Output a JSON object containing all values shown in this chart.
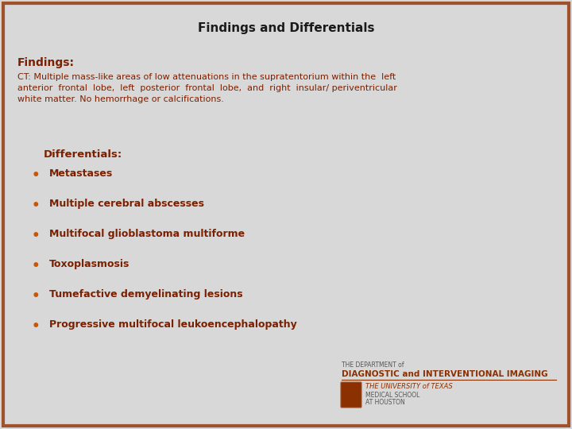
{
  "title": "Findings and Differentials",
  "title_fontsize": 11,
  "title_color": "#1a1a1a",
  "title_fontweight": "bold",
  "background_color": "#d8d8d8",
  "border_color": "#a0522d",
  "border_linewidth": 3,
  "findings_label": "Findings:",
  "findings_label_color": "#7B2000",
  "findings_label_fontsize": 10,
  "findings_text_line1": "CT: Multiple mass-like areas of low attenuations in the supratentorium within the  left",
  "findings_text_line2": "anterior  frontal  lobe,  left  posterior  frontal  lobe,  and  right  insular/ periventricular",
  "findings_text_line3": "white matter. No hemorrhage or calcifications.",
  "findings_text_color": "#7B2000",
  "findings_text_fontsize": 8,
  "differentials_label": "Differentials:",
  "differentials_label_color": "#7B2000",
  "differentials_label_fontsize": 9.5,
  "bullet_char": "•",
  "bullet_dot_color": "#cc5500",
  "bullet_items": [
    "Metastases",
    "Multiple cerebral abscesses",
    "Multifocal glioblastoma multiforme",
    "Toxoplasmosis",
    "Tumefactive demyelinating lesions",
    "Progressive multifocal leukoencephalopathy"
  ],
  "bullet_fontsize": 9,
  "bullet_text_color": "#7B2000",
  "logo_text1": "THE DEPARTMENT of",
  "logo_text2": "DIAGNOSTIC and INTERVENTIONAL IMAGING",
  "logo_text3": "THE UNIVERSITY of TEXAS",
  "logo_text4": "MEDICAL SCHOOL",
  "logo_text5": "AT HOUSTON",
  "logo_color1": "#555555",
  "logo_color2": "#8B3000",
  "logo_color3": "#8B3000",
  "logo_color4": "#555555",
  "logo_color5": "#555555"
}
